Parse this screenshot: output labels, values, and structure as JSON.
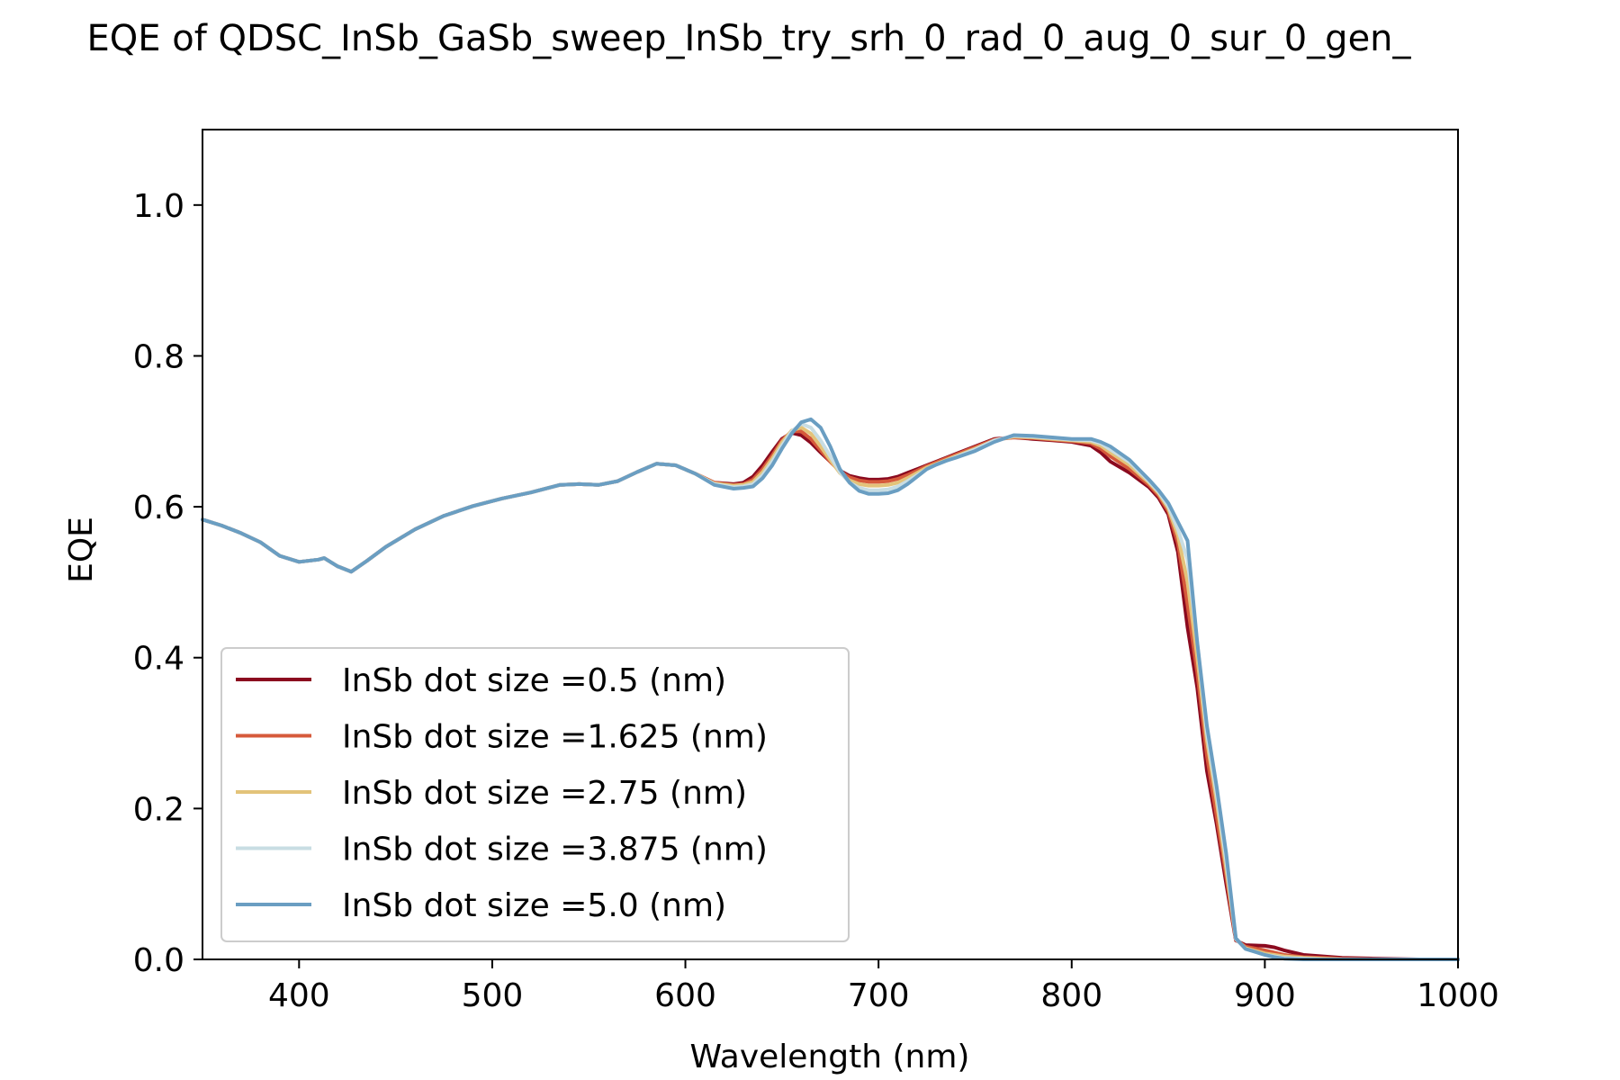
{
  "chart_data": {
    "type": "line",
    "title": "EQE of  QDSC_InSb_GaSb_sweep_InSb_try_srh_0_rad_0_aug_0_sur_0_gen_",
    "xlabel": "Wavelength (nm)",
    "ylabel": "EQE",
    "xlim": [
      350,
      1000
    ],
    "ylim": [
      0,
      1.1
    ],
    "xticks": [
      400,
      500,
      600,
      700,
      800,
      900,
      1000
    ],
    "xtick_labels": [
      "400",
      "500",
      "600",
      "700",
      "800",
      "900",
      "1000"
    ],
    "yticks": [
      0,
      0.2,
      0.4,
      0.6,
      0.8,
      1.0
    ],
    "ytick_labels": [
      "0.0",
      "0.2",
      "0.4",
      "0.6",
      "0.8",
      "1.0"
    ],
    "grid": false,
    "legend": {
      "position": "lower-left"
    },
    "x": [
      350,
      360,
      370,
      380,
      390,
      400,
      410,
      413,
      420,
      427,
      435,
      445,
      460,
      475,
      490,
      505,
      520,
      535,
      545,
      555,
      565,
      575,
      585,
      595,
      605,
      615,
      625,
      630,
      635,
      640,
      645,
      650,
      655,
      660,
      665,
      670,
      675,
      680,
      685,
      690,
      695,
      700,
      705,
      710,
      715,
      720,
      725,
      730,
      735,
      740,
      750,
      760,
      770,
      780,
      790,
      800,
      810,
      815,
      820,
      830,
      840,
      845,
      850,
      855,
      860,
      865,
      870,
      875,
      880,
      885,
      890,
      900,
      905,
      910,
      920,
      930,
      940,
      960,
      980,
      1000
    ],
    "series": [
      {
        "name": "InSb dot size =0.5 (nm)",
        "color": "#8b0a1f",
        "values": [
          0.583,
          0.575,
          0.565,
          0.553,
          0.535,
          0.527,
          0.53,
          0.532,
          0.521,
          0.514,
          0.528,
          0.547,
          0.57,
          0.588,
          0.601,
          0.611,
          0.619,
          0.629,
          0.63,
          0.629,
          0.634,
          0.646,
          0.657,
          0.655,
          0.644,
          0.632,
          0.63,
          0.632,
          0.64,
          0.655,
          0.673,
          0.69,
          0.698,
          0.695,
          0.685,
          0.672,
          0.66,
          0.648,
          0.641,
          0.638,
          0.636,
          0.636,
          0.637,
          0.64,
          0.645,
          0.65,
          0.655,
          0.66,
          0.665,
          0.67,
          0.68,
          0.69,
          0.692,
          0.69,
          0.688,
          0.686,
          0.681,
          0.672,
          0.66,
          0.645,
          0.626,
          0.612,
          0.59,
          0.54,
          0.44,
          0.36,
          0.25,
          0.18,
          0.1,
          0.025,
          0.019,
          0.018,
          0.016,
          0.012,
          0.006,
          0.004,
          0.002,
          0.001,
          0.0,
          0.0
        ]
      },
      {
        "name": "InSb dot size =1.625 (nm)",
        "color": "#d65a3b",
        "values": [
          0.583,
          0.575,
          0.565,
          0.553,
          0.535,
          0.527,
          0.53,
          0.532,
          0.521,
          0.514,
          0.528,
          0.547,
          0.57,
          0.588,
          0.601,
          0.611,
          0.619,
          0.629,
          0.63,
          0.629,
          0.634,
          0.646,
          0.657,
          0.655,
          0.644,
          0.632,
          0.629,
          0.63,
          0.636,
          0.65,
          0.668,
          0.688,
          0.7,
          0.7,
          0.69,
          0.675,
          0.66,
          0.647,
          0.639,
          0.635,
          0.633,
          0.633,
          0.634,
          0.637,
          0.642,
          0.648,
          0.654,
          0.659,
          0.664,
          0.669,
          0.679,
          0.689,
          0.692,
          0.691,
          0.689,
          0.687,
          0.684,
          0.677,
          0.667,
          0.65,
          0.629,
          0.615,
          0.594,
          0.552,
          0.47,
          0.38,
          0.27,
          0.19,
          0.11,
          0.026,
          0.017,
          0.012,
          0.009,
          0.006,
          0.003,
          0.002,
          0.001,
          0.0,
          0.0,
          0.0
        ]
      },
      {
        "name": "InSb dot size =2.75 (nm)",
        "color": "#e3c37a",
        "values": [
          0.583,
          0.575,
          0.565,
          0.553,
          0.535,
          0.527,
          0.53,
          0.532,
          0.521,
          0.514,
          0.528,
          0.547,
          0.57,
          0.588,
          0.601,
          0.611,
          0.619,
          0.629,
          0.63,
          0.629,
          0.634,
          0.646,
          0.657,
          0.655,
          0.644,
          0.631,
          0.628,
          0.629,
          0.633,
          0.646,
          0.664,
          0.685,
          0.701,
          0.705,
          0.697,
          0.68,
          0.662,
          0.645,
          0.635,
          0.63,
          0.628,
          0.628,
          0.629,
          0.632,
          0.638,
          0.645,
          0.652,
          0.657,
          0.662,
          0.667,
          0.677,
          0.688,
          0.693,
          0.692,
          0.69,
          0.688,
          0.686,
          0.681,
          0.672,
          0.655,
          0.632,
          0.618,
          0.598,
          0.562,
          0.5,
          0.4,
          0.29,
          0.21,
          0.12,
          0.027,
          0.015,
          0.008,
          0.006,
          0.004,
          0.002,
          0.001,
          0.0,
          0.0,
          0.0,
          0.0
        ]
      },
      {
        "name": "InSb dot size =3.875 (nm)",
        "color": "#c8dde3",
        "values": [
          0.583,
          0.575,
          0.565,
          0.553,
          0.535,
          0.527,
          0.53,
          0.532,
          0.521,
          0.514,
          0.528,
          0.547,
          0.57,
          0.588,
          0.601,
          0.611,
          0.619,
          0.629,
          0.63,
          0.629,
          0.634,
          0.646,
          0.657,
          0.655,
          0.644,
          0.63,
          0.626,
          0.627,
          0.63,
          0.642,
          0.66,
          0.681,
          0.7,
          0.71,
          0.705,
          0.688,
          0.667,
          0.646,
          0.632,
          0.625,
          0.622,
          0.622,
          0.623,
          0.627,
          0.634,
          0.642,
          0.65,
          0.656,
          0.661,
          0.666,
          0.676,
          0.688,
          0.694,
          0.693,
          0.691,
          0.689,
          0.688,
          0.684,
          0.676,
          0.659,
          0.634,
          0.62,
          0.601,
          0.57,
          0.53,
          0.42,
          0.3,
          0.22,
          0.13,
          0.027,
          0.014,
          0.006,
          0.004,
          0.002,
          0.001,
          0.0,
          0.0,
          0.0,
          0.0,
          0.0
        ]
      },
      {
        "name": "InSb dot size =5.0 (nm)",
        "color": "#6a9ec2",
        "values": [
          0.583,
          0.575,
          0.565,
          0.553,
          0.535,
          0.527,
          0.53,
          0.532,
          0.521,
          0.514,
          0.528,
          0.547,
          0.57,
          0.588,
          0.601,
          0.611,
          0.619,
          0.629,
          0.63,
          0.629,
          0.634,
          0.646,
          0.657,
          0.655,
          0.644,
          0.629,
          0.624,
          0.625,
          0.627,
          0.638,
          0.655,
          0.677,
          0.697,
          0.712,
          0.716,
          0.705,
          0.68,
          0.65,
          0.632,
          0.621,
          0.617,
          0.617,
          0.618,
          0.622,
          0.63,
          0.64,
          0.65,
          0.656,
          0.661,
          0.665,
          0.674,
          0.686,
          0.695,
          0.694,
          0.692,
          0.69,
          0.69,
          0.686,
          0.68,
          0.662,
          0.636,
          0.622,
          0.605,
          0.58,
          0.555,
          0.42,
          0.31,
          0.23,
          0.14,
          0.028,
          0.014,
          0.006,
          0.003,
          0.001,
          0.0,
          0.0,
          0.0,
          0.0,
          0.0,
          0.0
        ]
      }
    ]
  }
}
